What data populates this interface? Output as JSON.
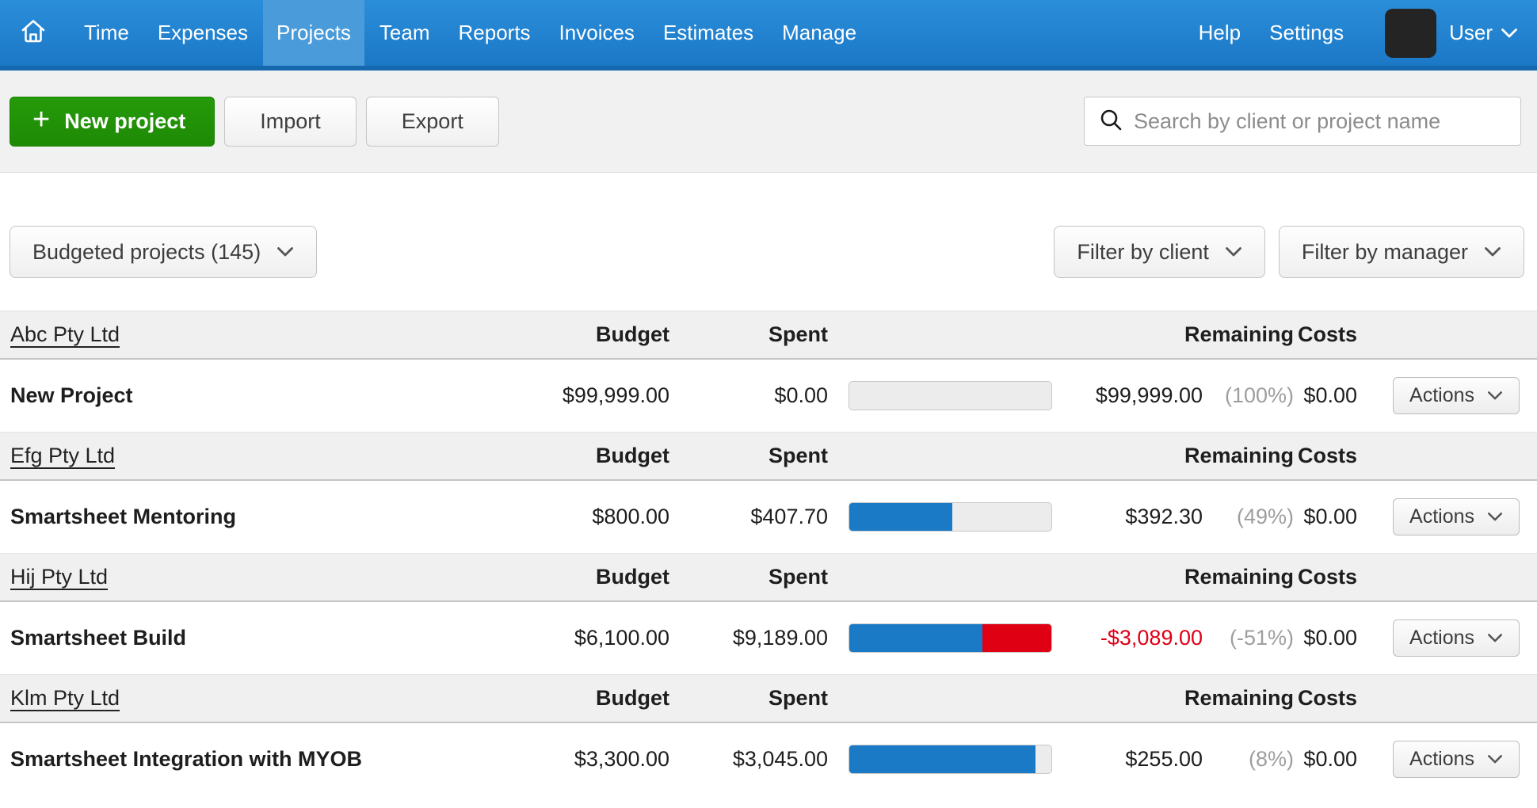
{
  "nav": {
    "items": [
      "Time",
      "Expenses",
      "Projects",
      "Team",
      "Reports",
      "Invoices",
      "Estimates",
      "Manage"
    ],
    "active_item": "Projects",
    "help_label": "Help",
    "settings_label": "Settings",
    "user_label": "User"
  },
  "toolbar": {
    "new_project_label": "New project",
    "import_label": "Import",
    "export_label": "Export",
    "search_placeholder": "Search by client or project name"
  },
  "filters": {
    "view_dropdown_label": "Budgeted projects (145)",
    "client_filter_label": "Filter by client",
    "manager_filter_label": "Filter by manager"
  },
  "table": {
    "column_headers": {
      "budget": "Budget",
      "spent": "Spent",
      "remaining": "Remaining",
      "costs": "Costs"
    },
    "actions_label": "Actions",
    "groups": [
      {
        "client": "Abc Pty Ltd",
        "projects": [
          {
            "name": "New Project",
            "budget": "$99,999.00",
            "spent": "$0.00",
            "remaining": "$99,999.00",
            "remaining_negative": false,
            "percent": "(100%)",
            "costs": "$0.00",
            "bar_blue_pct": 0,
            "bar_red_pct": 0
          }
        ]
      },
      {
        "client": "Efg Pty Ltd",
        "projects": [
          {
            "name": "Smartsheet Mentoring",
            "budget": "$800.00",
            "spent": "$407.70",
            "remaining": "$392.30",
            "remaining_negative": false,
            "percent": "(49%)",
            "costs": "$0.00",
            "bar_blue_pct": 51,
            "bar_red_pct": 0
          }
        ]
      },
      {
        "client": "Hij Pty Ltd",
        "projects": [
          {
            "name": "Smartsheet Build",
            "budget": "$6,100.00",
            "spent": "$9,189.00",
            "remaining": "-$3,089.00",
            "remaining_negative": true,
            "percent": "(-51%)",
            "costs": "$0.00",
            "bar_blue_pct": 66,
            "bar_red_pct": 34
          }
        ]
      },
      {
        "client": "Klm Pty Ltd",
        "projects": [
          {
            "name": "Smartsheet Integration with MYOB",
            "budget": "$3,300.00",
            "spent": "$3,045.00",
            "remaining": "$255.00",
            "remaining_negative": false,
            "percent": "(8%)",
            "costs": "$0.00",
            "bar_blue_pct": 92,
            "bar_red_pct": 0
          }
        ]
      }
    ]
  },
  "colors": {
    "nav_gradient_top": "#2b8ed9",
    "nav_gradient_bottom": "#1b78c7",
    "nav_active_tab": "#4a9bda",
    "primary_green": "#259a09",
    "bar_blue": "#1b7ac6",
    "bar_red": "#e00013",
    "negative_red": "#e00017",
    "percent_gray": "#9e9e9e"
  }
}
